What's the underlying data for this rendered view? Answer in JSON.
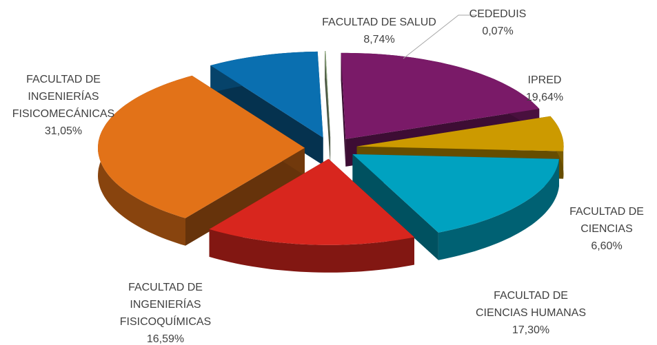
{
  "chart_data": {
    "type": "pie3d",
    "categories": [
      "FACULTAD DE SALUD",
      "CEDEDUIS",
      "IPRED",
      "FACULTAD DE CIENCIAS",
      "FACULTAD DE CIENCIAS HUMANAS",
      "FACULTAD DE INGENIERÍAS FISICOQUÍMICAS",
      "FACULTAD DE INGENIERÍAS FISICOMECÁNICAS"
    ],
    "values": [
      8.74,
      0.07,
      19.64,
      6.6,
      17.3,
      16.59,
      31.05
    ],
    "value_labels": [
      "8,74%",
      "0,07%",
      "19,64%",
      "6,60%",
      "17,30%",
      "16,59%",
      "31,05%"
    ],
    "colors": [
      "#0a6fb0",
      "#9cb48c",
      "#7a1a68",
      "#cc9a00",
      "#00a2c0",
      "#d8261e",
      "#e27218"
    ]
  }
}
